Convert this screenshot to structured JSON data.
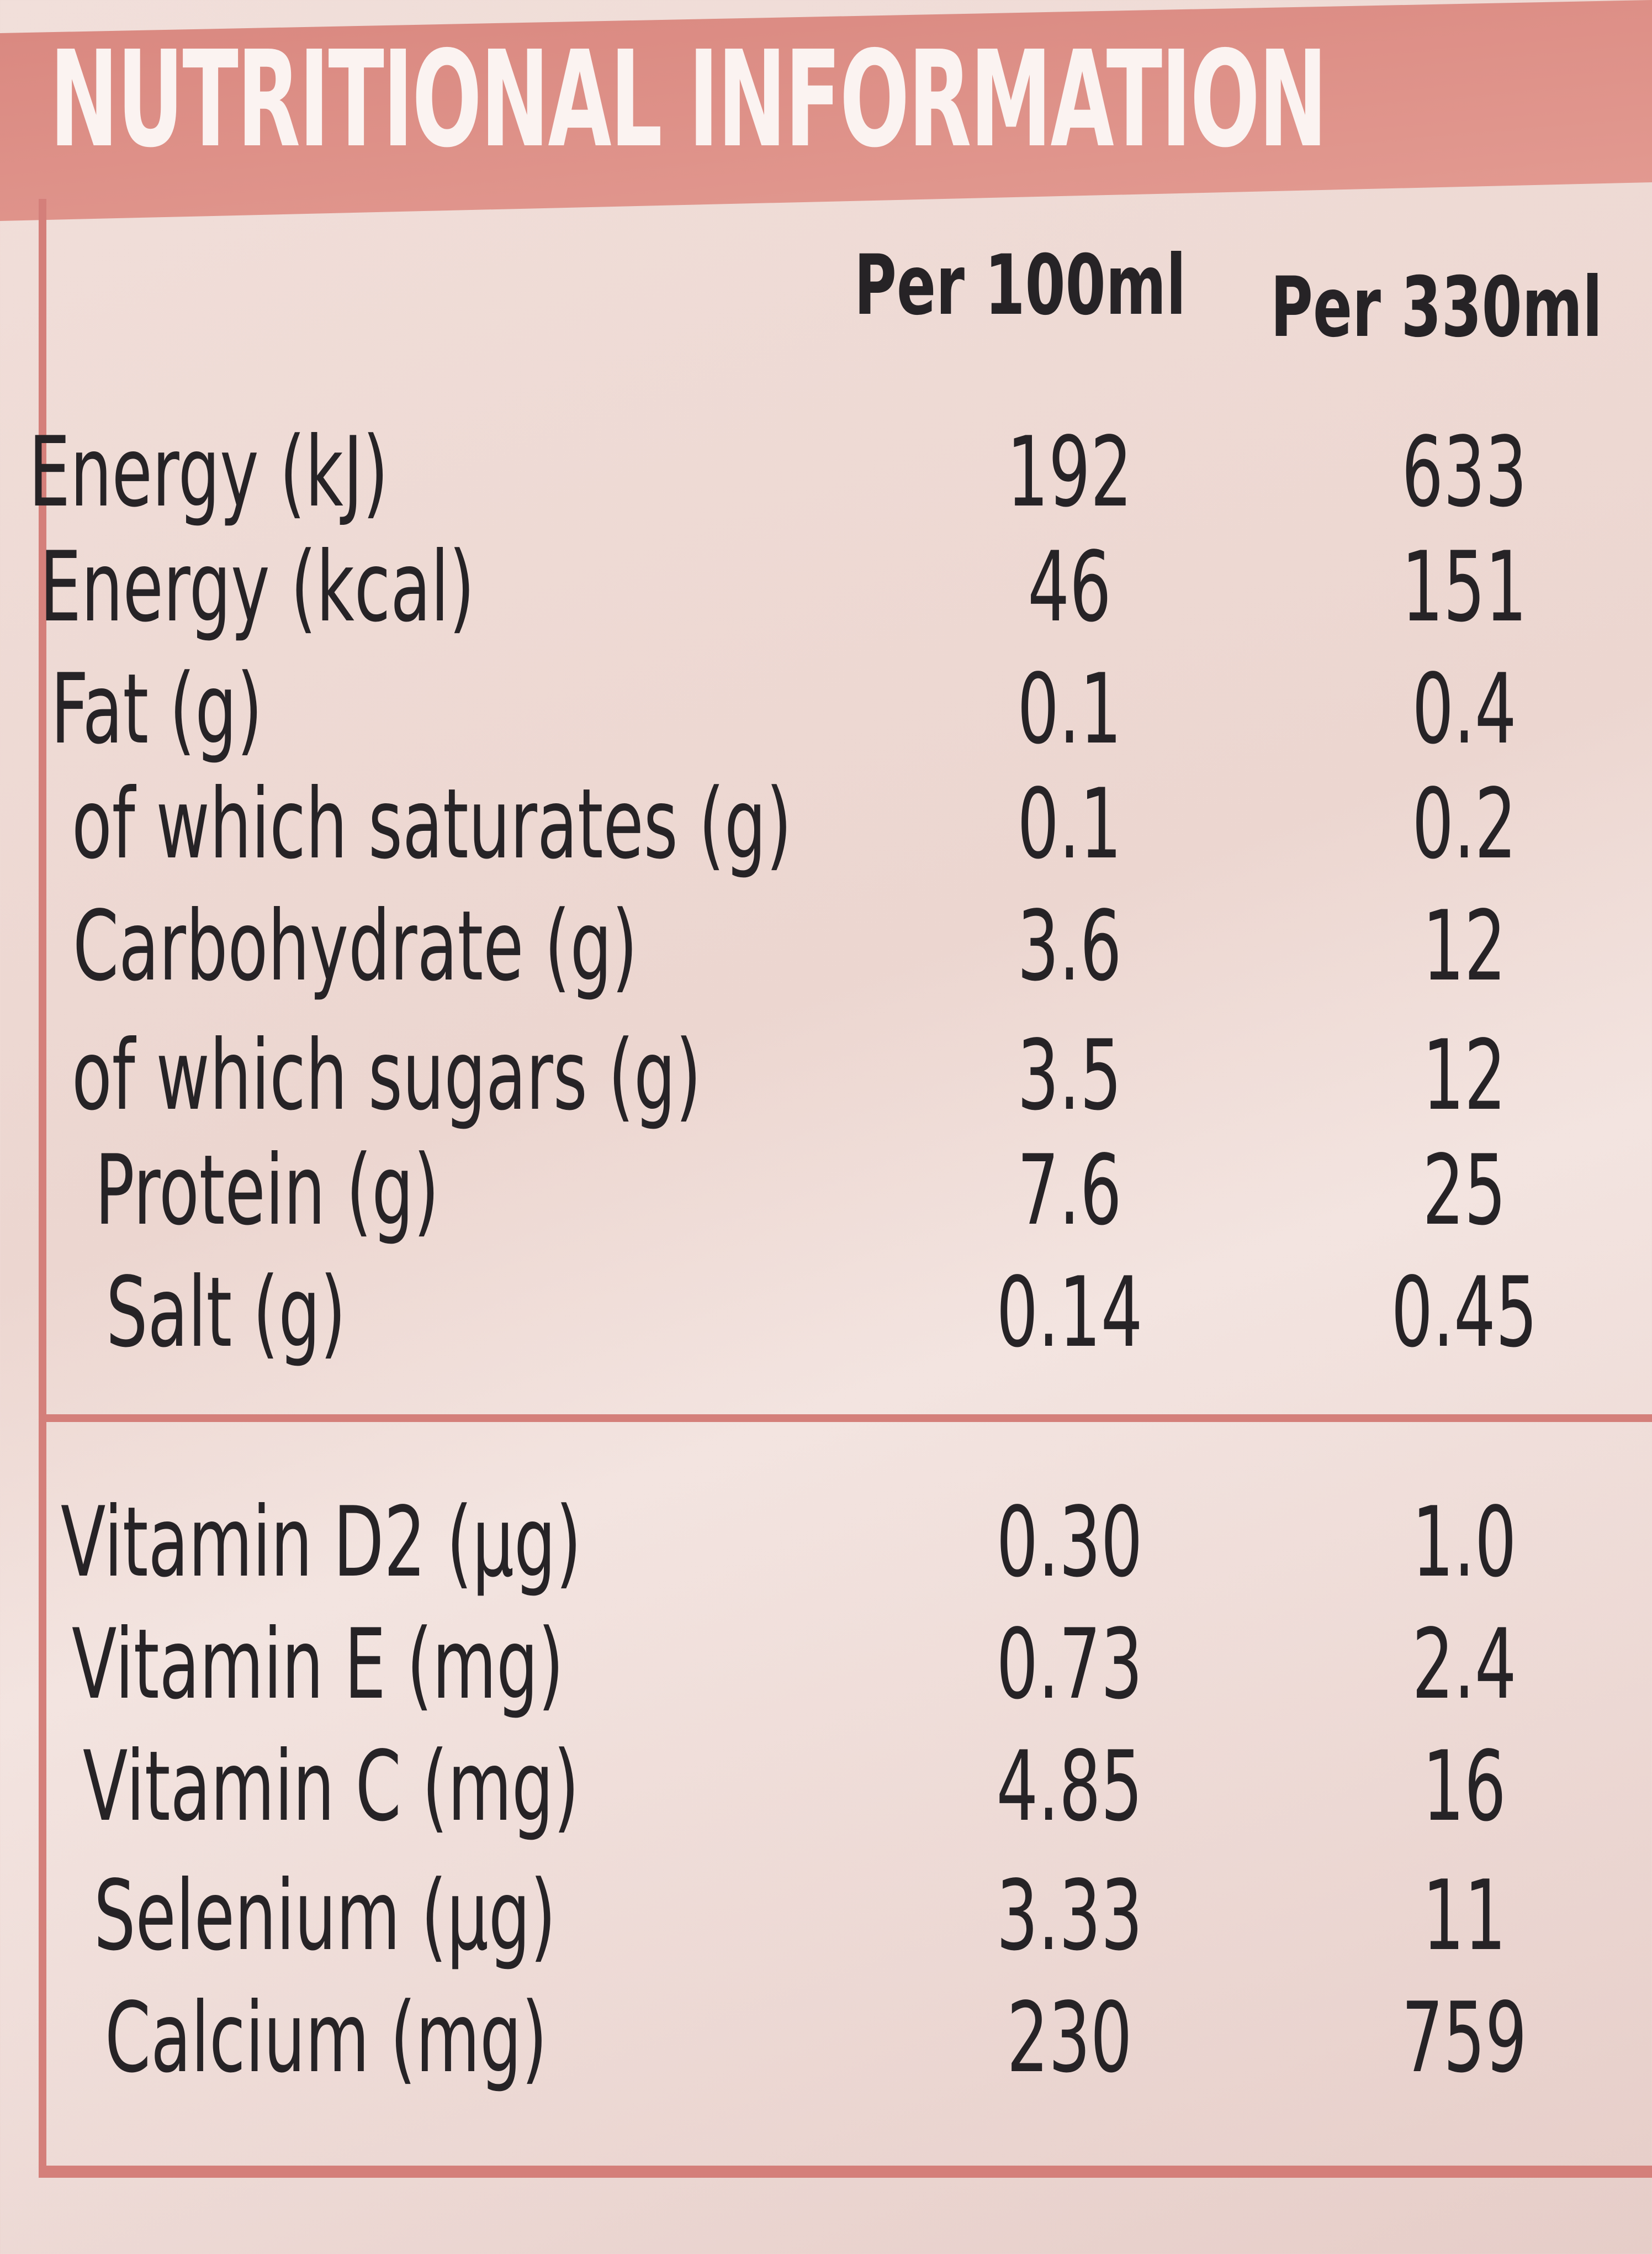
{
  "header": {
    "title": "NUTRITIONAL INFORMATION"
  },
  "table": {
    "columns": [
      "Per 100ml",
      "Per 330ml"
    ],
    "rows": [
      [
        "Energy (kJ)",
        "192",
        "633"
      ],
      [
        "Energy (kcal)",
        "46",
        "151"
      ],
      [
        "Fat (g)",
        "0.1",
        "0.4"
      ],
      [
        "of which saturates (g)",
        "0.1",
        "0.2"
      ],
      [
        "Carbohydrate (g)",
        "3.6",
        "12"
      ],
      [
        "of which sugars (g)",
        "3.5",
        "12"
      ],
      [
        "Protein (g)",
        "7.6",
        "25"
      ],
      [
        "Salt (g)",
        "0.14",
        "0.45"
      ]
    ],
    "vitamin_rows": [
      [
        "Vitamin D2 (µg)",
        "0.30",
        "1.0"
      ],
      [
        "Vitamin E (mg)",
        "0.73",
        "2.4"
      ],
      [
        "Vitamin C (mg)",
        "4.85",
        "16"
      ],
      [
        "Selenium (µg)",
        "3.33",
        "11"
      ],
      [
        "Calcium (mg)",
        "230",
        "759"
      ]
    ]
  }
}
